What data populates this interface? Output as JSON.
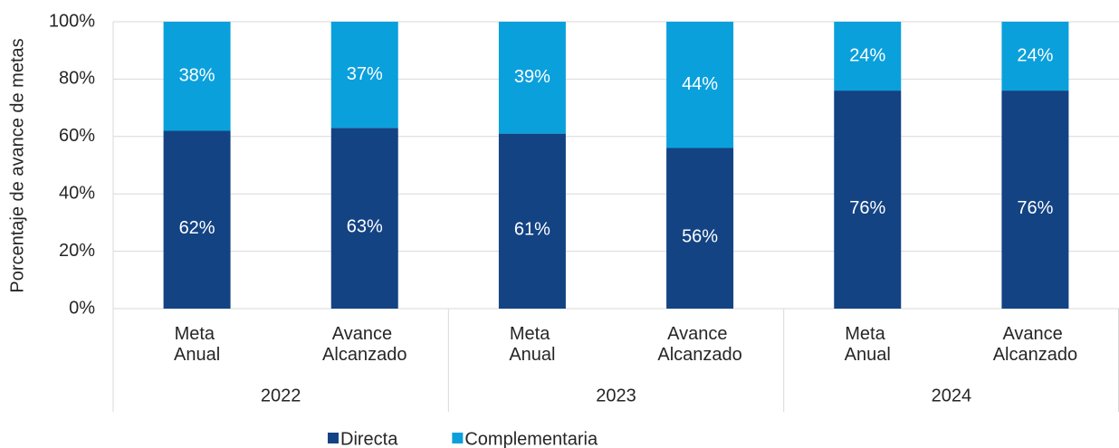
{
  "chart_data": {
    "type": "stacked_bar",
    "y_label": "Porcentaje de avance de metas",
    "categories": [
      "Meta Anual",
      "Avance Alcanzado",
      "Meta Anual",
      "Avance Alcanzado",
      "Meta Anual",
      "Avance Alcanzado"
    ],
    "groups": [
      "2022",
      "2023",
      "2024"
    ],
    "series": [
      {
        "name": "Directa",
        "color": "#134383",
        "values": [
          62,
          63,
          61,
          56,
          76,
          76
        ],
        "value_labels": [
          "62%",
          "63%",
          "61%",
          "56%",
          "76%",
          "76%"
        ]
      },
      {
        "name": "Complementaria",
        "color": "#0aa0dc",
        "values": [
          38,
          37,
          39,
          44,
          24,
          24
        ],
        "value_labels": [
          "38%",
          "37%",
          "39%",
          "44%",
          "24%",
          "24%"
        ]
      }
    ],
    "ylim": [
      0,
      100
    ],
    "yticks": [
      {
        "value": 0,
        "label": "0%"
      },
      {
        "value": 20,
        "label": "20%"
      },
      {
        "value": 40,
        "label": "40%"
      },
      {
        "value": 60,
        "label": "60%"
      },
      {
        "value": 80,
        "label": "80%"
      },
      {
        "value": 100,
        "label": "100%"
      }
    ],
    "grid": true,
    "legend": "bottom"
  }
}
